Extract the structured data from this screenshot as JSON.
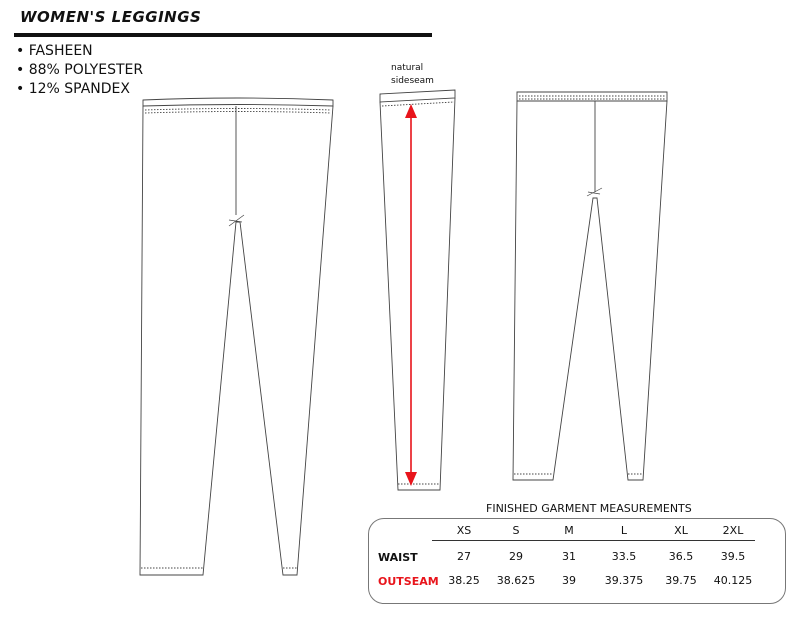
{
  "title": "WOMEN'S LEGGINGS",
  "features": [
    "• FASHEEN",
    "• 88% POLYESTER",
    "• 12% SPANDEX"
  ],
  "annotation": {
    "line1": "natural",
    "line2": "sideseam"
  },
  "measurements": {
    "title": "FINISHED GARMENT MEASUREMENTS",
    "sizes": [
      "XS",
      "S",
      "M",
      "L",
      "XL",
      "2XL"
    ],
    "rows": [
      {
        "label": "WAIST",
        "values": [
          "27",
          "29",
          "31",
          "33.5",
          "36.5",
          "39.5"
        ]
      },
      {
        "label": "OUTSEAM",
        "values": [
          "38.25",
          "38.625",
          "39",
          "39.375",
          "39.75",
          "40.125"
        ],
        "color": "#e8141b"
      }
    ]
  },
  "colors": {
    "arrow": "#e8141b",
    "outseam_label": "#e8141b"
  }
}
